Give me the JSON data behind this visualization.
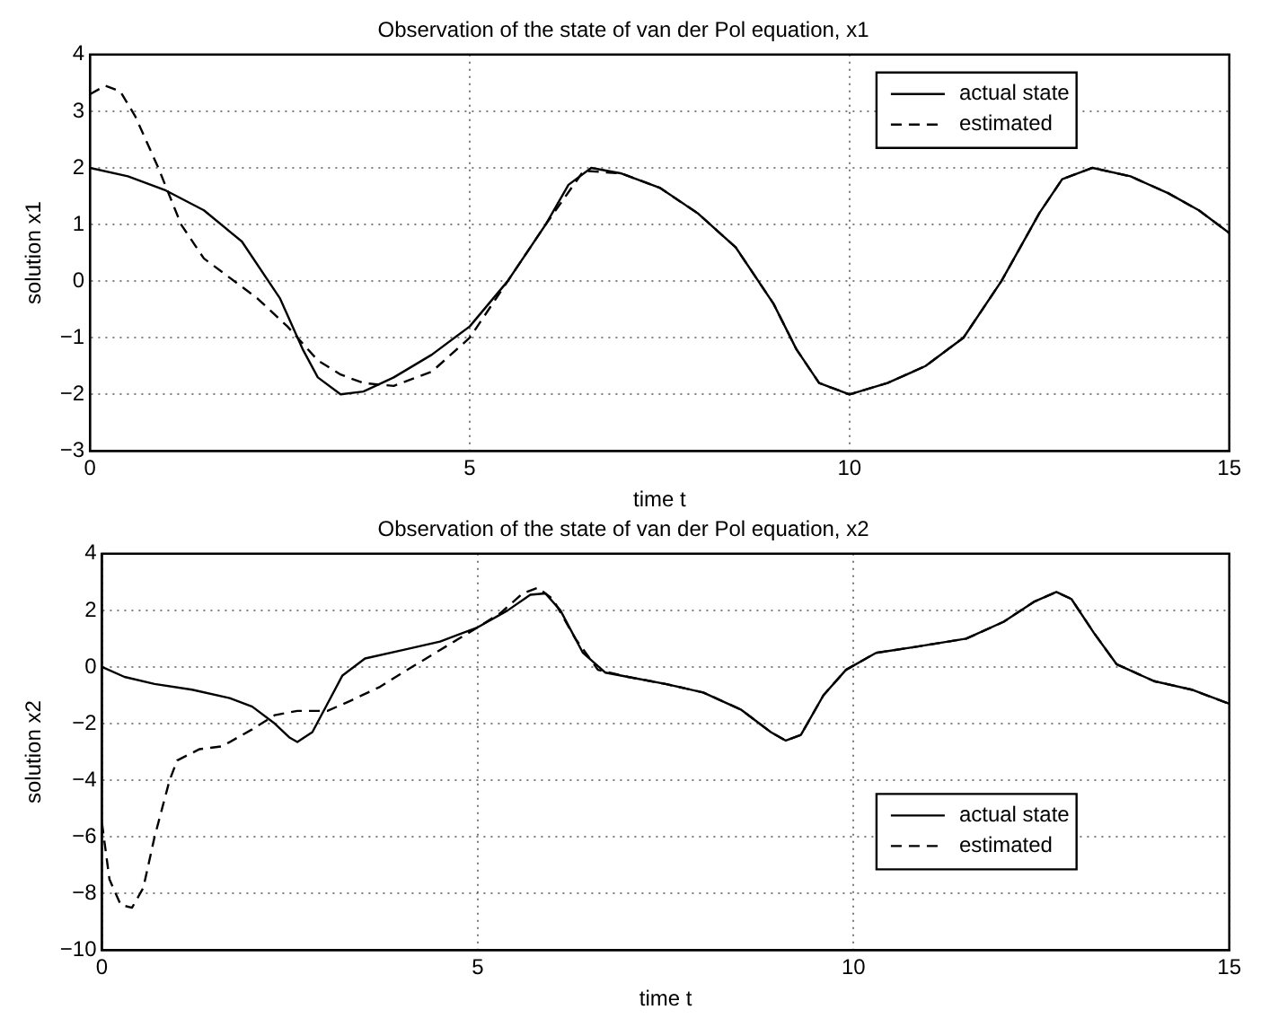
{
  "chart_data": [
    {
      "type": "line",
      "title": "Observation of the state of van der Pol equation, x1",
      "xlabel": "time t",
      "ylabel": "solution x1",
      "xlim": [
        0,
        15
      ],
      "xticks": [
        0,
        5,
        10,
        15
      ],
      "ylim": [
        -3,
        4
      ],
      "yticks": [
        -3,
        -2,
        -1,
        0,
        1,
        2,
        3,
        4
      ],
      "grid": true,
      "legend": "top right",
      "marker": "none",
      "series": [
        {
          "name": "actual state",
          "color": "#000000",
          "line_style": "solid",
          "x": [
            0,
            0.5,
            1,
            1.5,
            2,
            2.5,
            2.8,
            3,
            3.3,
            3.6,
            4,
            4.5,
            5,
            5.5,
            6,
            6.3,
            6.6,
            7,
            7.5,
            8,
            8.5,
            9,
            9.3,
            9.6,
            10,
            10.5,
            11,
            11.5,
            12,
            12.5,
            12.8,
            13.2,
            13.7,
            14.2,
            14.6,
            15
          ],
          "values": [
            2,
            1.85,
            1.6,
            1.25,
            0.7,
            -0.3,
            -1.2,
            -1.7,
            -2,
            -1.95,
            -1.7,
            -1.3,
            -0.8,
            0,
            1,
            1.7,
            2,
            1.9,
            1.65,
            1.2,
            0.6,
            -0.4,
            -1.2,
            -1.8,
            -2,
            -1.8,
            -1.5,
            -1,
            0,
            1.2,
            1.8,
            2,
            1.85,
            1.55,
            1.25,
            0.85
          ]
        },
        {
          "name": "estimated",
          "color": "#000000",
          "line_style": "dashed",
          "x": [
            0,
            0.2,
            0.4,
            0.6,
            0.9,
            1.2,
            1.5,
            1.8,
            2.2,
            2.6,
            3,
            3.3,
            3.6,
            4,
            4.5,
            5,
            5.5,
            6,
            6.5,
            7,
            7.5,
            8,
            8.5,
            9,
            9.3,
            9.6,
            10,
            10.5,
            11,
            11.5,
            12,
            12.5,
            12.8,
            13.2,
            13.7,
            14.2,
            14.6,
            15
          ],
          "values": [
            3.3,
            3.45,
            3.35,
            2.9,
            2,
            1,
            0.4,
            0.1,
            -0.3,
            -0.8,
            -1.4,
            -1.65,
            -1.8,
            -1.85,
            -1.6,
            -1,
            0,
            1,
            1.95,
            1.9,
            1.65,
            1.2,
            0.6,
            -0.4,
            -1.2,
            -1.8,
            -2,
            -1.8,
            -1.5,
            -1,
            0,
            1.2,
            1.8,
            2,
            1.85,
            1.55,
            1.25,
            0.85
          ]
        }
      ]
    },
    {
      "type": "line",
      "title": "Observation of the state of van der Pol equation, x2",
      "xlabel": "time t",
      "ylabel": "solution x2",
      "xlim": [
        0,
        15
      ],
      "xticks": [
        0,
        5,
        10,
        15
      ],
      "ylim": [
        -10,
        4
      ],
      "yticks": [
        -10,
        -8,
        -6,
        -4,
        -2,
        0,
        2,
        4
      ],
      "grid": true,
      "legend": "bottom right",
      "marker": "none",
      "series": [
        {
          "name": "actual state",
          "color": "#000000",
          "line_style": "solid",
          "x": [
            0,
            0.3,
            0.7,
            1.2,
            1.7,
            2,
            2.3,
            2.5,
            2.6,
            2.8,
            3,
            3.2,
            3.5,
            4,
            4.5,
            5,
            5.4,
            5.7,
            5.9,
            6.1,
            6.4,
            6.7,
            7,
            7.5,
            8,
            8.5,
            8.9,
            9.1,
            9.3,
            9.6,
            9.9,
            10.3,
            10.8,
            11.5,
            12,
            12.4,
            12.7,
            12.9,
            13.2,
            13.5,
            14,
            14.5,
            15
          ],
          "values": [
            0,
            -0.35,
            -0.6,
            -0.8,
            -1.1,
            -1.4,
            -2,
            -2.5,
            -2.65,
            -2.3,
            -1.3,
            -0.3,
            0.3,
            0.6,
            0.9,
            1.4,
            2,
            2.55,
            2.6,
            2,
            0.5,
            -0.2,
            -0.35,
            -0.6,
            -0.9,
            -1.5,
            -2.3,
            -2.6,
            -2.4,
            -1,
            -0.1,
            0.5,
            0.7,
            1,
            1.6,
            2.3,
            2.65,
            2.4,
            1.2,
            0.1,
            -0.5,
            -0.8,
            -1.3
          ]
        },
        {
          "name": "estimated",
          "color": "#000000",
          "line_style": "dashed",
          "x": [
            0,
            0.1,
            0.25,
            0.4,
            0.55,
            0.7,
            0.9,
            1,
            1.3,
            1.6,
            2,
            2.3,
            2.6,
            3,
            3.3,
            3.7,
            4,
            4.5,
            5,
            5.3,
            5.6,
            5.8,
            6,
            6.3,
            6.6,
            7,
            7.5,
            8,
            8.5,
            8.9,
            9.1,
            9.3,
            9.6,
            9.9,
            10.3,
            10.8,
            11.5,
            12,
            12.4,
            12.7,
            12.9,
            13.2,
            13.5,
            14,
            14.5,
            15
          ],
          "values": [
            -5.5,
            -7.5,
            -8.4,
            -8.5,
            -7.8,
            -6,
            -4,
            -3.3,
            -2.9,
            -2.8,
            -2.2,
            -1.7,
            -1.55,
            -1.55,
            -1.2,
            -0.7,
            -0.2,
            0.6,
            1.4,
            1.9,
            2.6,
            2.8,
            2.4,
            1,
            -0.1,
            -0.35,
            -0.6,
            -0.9,
            -1.5,
            -2.3,
            -2.6,
            -2.4,
            -1,
            -0.1,
            0.5,
            0.7,
            1,
            1.6,
            2.3,
            2.65,
            2.4,
            1.2,
            0.1,
            -0.5,
            -0.8,
            -1.3
          ]
        }
      ]
    }
  ]
}
